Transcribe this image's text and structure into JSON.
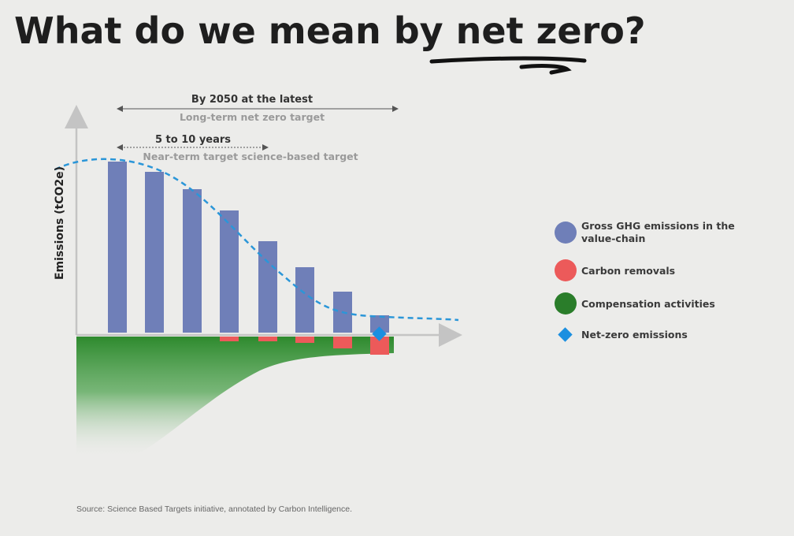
{
  "title": "What do we mean by net zero?",
  "annotations": {
    "long_term": {
      "label": "By 2050 at the latest",
      "sublabel": "Long-term net zero target"
    },
    "near_term": {
      "label": "5 to 10 years",
      "sublabel": "Near-term target science-based target"
    }
  },
  "y_axis_label": "Emissions (tCO2e)",
  "legend": {
    "items": [
      {
        "lines": [
          "Gross GHG emissions in the",
          "value-chain"
        ]
      },
      {
        "lines": [
          "Carbon removals"
        ]
      },
      {
        "lines": [
          "Compensation activities"
        ]
      },
      {
        "lines": [
          "Net-zero emissions"
        ]
      }
    ]
  },
  "source": "Source: Science Based Targets initiative, annotated by Carbon Intelligence."
}
